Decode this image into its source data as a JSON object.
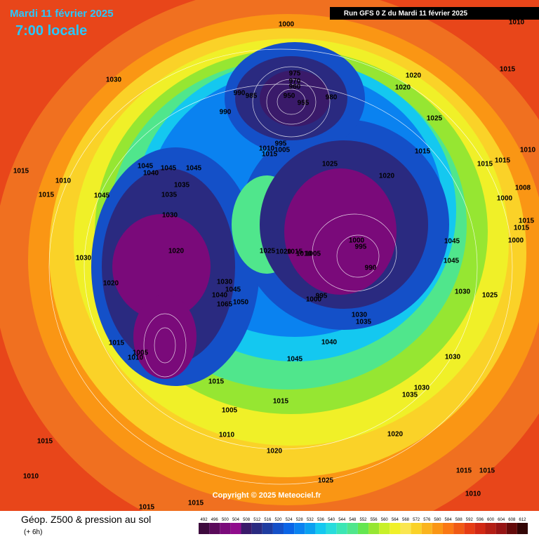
{
  "header": {
    "date": "Mardi 11 février 2025",
    "time": "7:00 locale",
    "run": "Run GFS 0 Z du Mardi 11 février 2025"
  },
  "footer": {
    "title": "Géop. Z500 & pression au sol",
    "lead": "(+ 6h)",
    "copyright": "Copyright © 2025 Meteociel.fr"
  },
  "pressure_labels": [
    1000,
    1010,
    1015,
    1030,
    975,
    970,
    960,
    950,
    955,
    990,
    985,
    980,
    1020,
    1020,
    990,
    1025,
    995,
    1010,
    1005,
    1015,
    1015,
    1025,
    1015,
    1015,
    1010,
    1015,
    1045,
    1045,
    1045,
    1040,
    1020,
    1010,
    1035,
    1015,
    1045,
    1035,
    1008,
    1000,
    1030,
    1015,
    1015,
    1000,
    1020,
    1025,
    1020,
    1015,
    1010,
    1005,
    1000,
    995,
    990,
    1045,
    1045,
    1030,
    1020,
    1030,
    1045,
    1040,
    1050,
    1065,
    995,
    1000,
    1030,
    1025,
    1030,
    1035,
    1015,
    1040,
    1010,
    1005,
    1045,
    1030,
    1015,
    1030,
    1035,
    1015,
    1005,
    1010,
    1020,
    1015,
    1020,
    1010,
    1025,
    1015,
    1015,
    1010,
    1015,
    1015
  ],
  "colorbar": {
    "values": [
      492,
      496,
      500,
      504,
      508,
      512,
      516,
      520,
      524,
      528,
      532,
      536,
      540,
      544,
      548,
      552,
      556,
      560,
      564,
      568,
      572,
      576,
      580,
      584,
      588,
      592,
      596,
      600,
      604,
      608,
      612
    ],
    "colors": [
      "#3d0a3d",
      "#5a0a5a",
      "#7a0a7a",
      "#900c8c",
      "#3a1a6a",
      "#2a2a80",
      "#1e3ca0",
      "#1450c8",
      "#0a64e6",
      "#0a82f0",
      "#0aa0f0",
      "#14c8f0",
      "#28dcdc",
      "#3ce6b4",
      "#50e68c",
      "#64e650",
      "#96e632",
      "#c8f028",
      "#f0f028",
      "#fae650",
      "#fad228",
      "#fab41e",
      "#fa9614",
      "#fa7814",
      "#f05a14",
      "#e63c14",
      "#d22814",
      "#b41e14",
      "#961414",
      "#640a0a",
      "#320505"
    ]
  }
}
